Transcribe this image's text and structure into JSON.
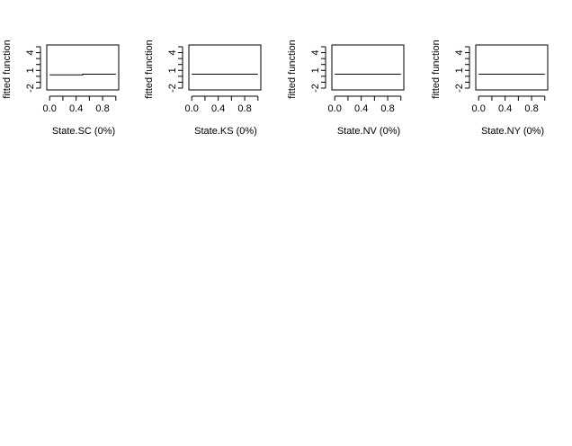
{
  "chart_data": [
    {
      "type": "line",
      "xlabel": "State.SC  (0%)",
      "ylabel": "fitted function",
      "xlim": [
        0,
        1
      ],
      "ylim": [
        -2,
        5
      ],
      "xticks": [
        "0.0",
        "0.4",
        "0.8"
      ],
      "yticks": [
        "-2",
        "1",
        "4"
      ],
      "series": [
        {
          "x": [
            0,
            0.5,
            0.5,
            1
          ],
          "y": [
            0.25,
            0.25,
            0.35,
            0.35
          ]
        }
      ]
    },
    {
      "type": "line",
      "xlabel": "State.KS  (0%)",
      "ylabel": "fitted function",
      "xlim": [
        0,
        1
      ],
      "ylim": [
        -2,
        5
      ],
      "xticks": [
        "0.0",
        "0.4",
        "0.8"
      ],
      "yticks": [
        "-2",
        "1",
        "4"
      ],
      "series": [
        {
          "x": [
            0,
            1
          ],
          "y": [
            0.35,
            0.35
          ]
        }
      ]
    },
    {
      "type": "line",
      "xlabel": "State.NV  (0%)",
      "ylabel": "fitted function",
      "xlim": [
        0,
        1
      ],
      "ylim": [
        -2,
        5
      ],
      "xticks": [
        "0.0",
        "0.4",
        "0.8"
      ],
      "yticks": [
        "-2",
        "1",
        "4"
      ],
      "series": [
        {
          "x": [
            0,
            1
          ],
          "y": [
            0.35,
            0.35
          ]
        }
      ]
    },
    {
      "type": "line",
      "xlabel": "State.NY  (0%)",
      "ylabel": "fitted function",
      "xlim": [
        0,
        1
      ],
      "ylim": [
        -2,
        5
      ],
      "xticks": [
        "0.0",
        "0.4",
        "0.8"
      ],
      "yticks": [
        "-2",
        "1",
        "4"
      ],
      "series": [
        {
          "x": [
            0,
            1
          ],
          "y": [
            0.35,
            0.35
          ]
        }
      ]
    }
  ]
}
